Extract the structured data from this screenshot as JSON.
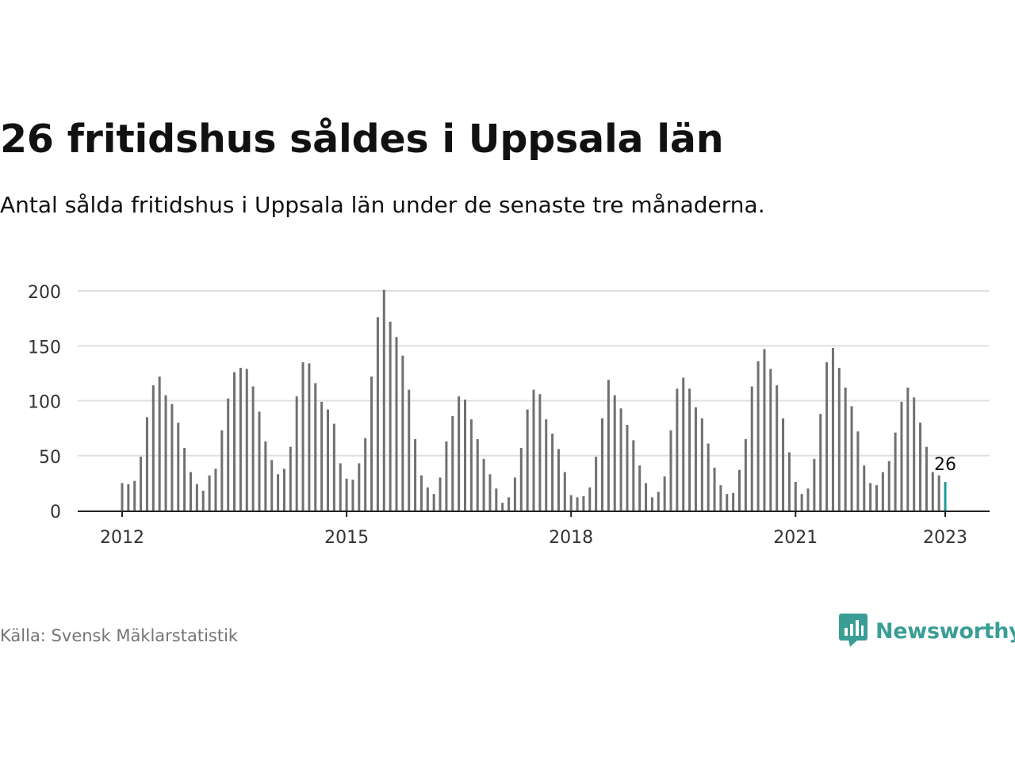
{
  "title": "26 fritidshus såldes i Uppsala län",
  "subtitle": "Antal sålda fritidshus i Uppsala län under de senaste tre månaderna.",
  "source": "Källa: Svensk Mäklarstatistik",
  "brand": {
    "name": "Newsworthy",
    "color": "#3a9e96"
  },
  "colors": {
    "bar": "#707070",
    "highlight": "#1a9c94",
    "grid": "#e0e0e0",
    "axis": "#222222",
    "tick_text": "#333333"
  },
  "chart_data": {
    "type": "bar",
    "x_start": "2012-01",
    "x_end": "2023-01",
    "interval": "month",
    "ylim": [
      0,
      200
    ],
    "yticks": [
      0,
      50,
      100,
      150,
      200
    ],
    "xticks": [
      {
        "label": "2012",
        "date": "2012-01"
      },
      {
        "label": "2015",
        "date": "2015-01"
      },
      {
        "label": "2018",
        "date": "2018-01"
      },
      {
        "label": "2021",
        "date": "2021-01"
      },
      {
        "label": "2023",
        "date": "2023-01"
      }
    ],
    "grid": true,
    "values": [
      25,
      24,
      27,
      49,
      85,
      114,
      122,
      105,
      97,
      80,
      57,
      35,
      24,
      18,
      32,
      38,
      73,
      102,
      126,
      130,
      129,
      113,
      90,
      63,
      46,
      33,
      38,
      58,
      104,
      135,
      134,
      116,
      99,
      92,
      79,
      43,
      29,
      28,
      43,
      66,
      122,
      176,
      201,
      172,
      158,
      141,
      110,
      65,
      32,
      21,
      15,
      30,
      63,
      86,
      104,
      101,
      83,
      65,
      47,
      33,
      20,
      7,
      12,
      30,
      57,
      92,
      110,
      106,
      83,
      70,
      56,
      35,
      14,
      12,
      13,
      21,
      49,
      84,
      119,
      105,
      93,
      78,
      64,
      41,
      25,
      12,
      17,
      31,
      73,
      111,
      121,
      111,
      94,
      84,
      61,
      39,
      23,
      15,
      16,
      37,
      65,
      113,
      136,
      147,
      129,
      114,
      84,
      53,
      26,
      15,
      20,
      47,
      88,
      135,
      148,
      130,
      112,
      95,
      72,
      41,
      25,
      23,
      35,
      45,
      71,
      99,
      112,
      103,
      80,
      58,
      35,
      32,
      26
    ],
    "highlight": {
      "date": "2023-01",
      "value": 26,
      "label": "26"
    }
  }
}
